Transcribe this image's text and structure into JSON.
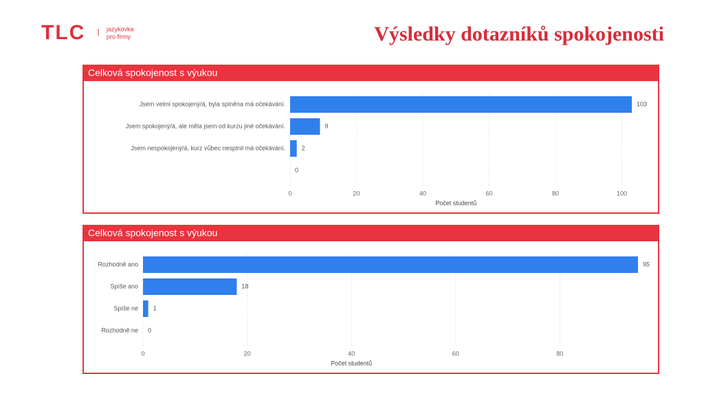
{
  "header": {
    "logo": "TLC",
    "tagline": [
      "jazykovka",
      "pro firmy"
    ],
    "title": "Výsledky dotazníků spokojenosti"
  },
  "chart_data": [
    {
      "type": "bar",
      "orientation": "horizontal",
      "title": "Celková spokojenost s výukou",
      "categories": [
        "Jsem velmi spokojený/á, byla splněna má očekávání.",
        "Jsem spokojený/á, ale měla jsem od kurzu jiné očekávání.",
        "Jsem nespokojený/á, kurz vůbec nesplnil má očekávání.",
        null
      ],
      "values": [
        103,
        9,
        2,
        0
      ],
      "color": "#2f80ed",
      "xlim": [
        0,
        103
      ],
      "xticks": [
        0,
        20,
        40,
        60,
        80,
        100
      ],
      "x_label": "Počet studentů",
      "grid": true
    },
    {
      "type": "bar",
      "orientation": "horizontal",
      "title": "Celková spokojenost s výukou",
      "categories": [
        "Rozhodně ano",
        "Spíše ano",
        "Spíše ne",
        "Rozhodně ne"
      ],
      "values": [
        95,
        18,
        1,
        0
      ],
      "color": "#2f80ed",
      "xlim": [
        0,
        95
      ],
      "xticks": [
        0,
        20,
        40,
        60,
        80
      ],
      "x_label": "Počet studentů",
      "grid": true
    }
  ]
}
